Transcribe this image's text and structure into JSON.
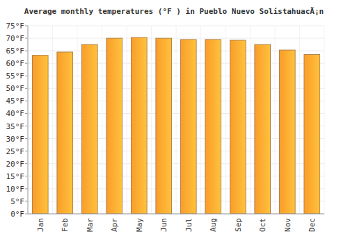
{
  "chart_data": {
    "type": "bar",
    "title": "Average monthly temperatures (°F ) in Pueblo Nuevo SolistahuacÃ¡n",
    "categories": [
      "Jan",
      "Feb",
      "Mar",
      "Apr",
      "May",
      "Jun",
      "Jul",
      "Aug",
      "Sep",
      "Oct",
      "Nov",
      "Dec"
    ],
    "values": [
      63.2,
      64.5,
      67.5,
      70,
      70.3,
      70,
      69.5,
      69.5,
      69.2,
      67.5,
      65.3,
      63.5
    ],
    "color": "#f99d2a",
    "ylim": [
      0,
      75
    ],
    "yticks": [
      {
        "value": 0,
        "label": "0°F"
      },
      {
        "value": 5,
        "label": "5°F"
      },
      {
        "value": 10,
        "label": "10°F"
      },
      {
        "value": 15,
        "label": "15°F"
      },
      {
        "value": 20,
        "label": "20°F"
      },
      {
        "value": 25,
        "label": "25°F"
      },
      {
        "value": 30,
        "label": "30°F"
      },
      {
        "value": 35,
        "label": "35°F"
      },
      {
        "value": 40,
        "label": "40°F"
      },
      {
        "value": 45,
        "label": "45°F"
      },
      {
        "value": 50,
        "label": "50°F"
      },
      {
        "value": 55,
        "label": "55°F"
      },
      {
        "value": 60,
        "label": "60°F"
      },
      {
        "value": 65,
        "label": "65°F"
      },
      {
        "value": 70,
        "label": "70°F"
      },
      {
        "value": 75,
        "label": "75°F"
      }
    ],
    "grid": true
  }
}
